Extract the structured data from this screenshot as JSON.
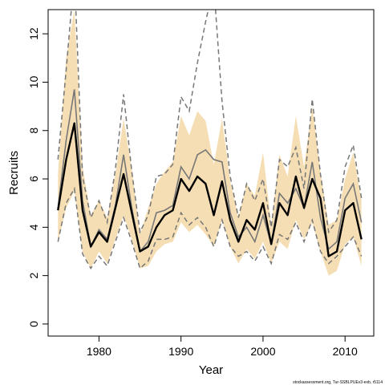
{
  "chart_data": {
    "type": "line",
    "xlabel": "Year",
    "ylabel": "Recruits",
    "xlim": [
      1973.8,
      2013.5
    ],
    "ylim": [
      -0.5,
      13
    ],
    "x_ticks": [
      1980,
      1990,
      2000,
      2010
    ],
    "y_ticks": [
      0,
      2,
      4,
      6,
      8,
      10,
      12
    ],
    "x_tick_labels": [
      "1980",
      "1990",
      "2000",
      "2010"
    ],
    "y_tick_labels": [
      "0",
      "2",
      "4",
      "6",
      "8",
      "10",
      "12"
    ],
    "x": [
      1975,
      1976,
      1977,
      1978,
      1979,
      1980,
      1981,
      1982,
      1983,
      1984,
      1985,
      1986,
      1987,
      1988,
      1989,
      1990,
      1991,
      1992,
      1993,
      1994,
      1995,
      1996,
      1997,
      1998,
      1999,
      2000,
      2001,
      2002,
      2003,
      2004,
      2005,
      2006,
      2007,
      2008,
      2009,
      2010,
      2011,
      2012
    ],
    "series": [
      {
        "role": "band",
        "color": "#f5deb3",
        "lower": [
          3.4,
          4.8,
          5.5,
          3.0,
          2.3,
          3.0,
          2.5,
          3.5,
          4.5,
          3.5,
          2.3,
          2.4,
          3.0,
          3.3,
          3.4,
          4.2,
          3.8,
          4.1,
          3.7,
          3.2,
          4.3,
          3.2,
          2.5,
          3.1,
          2.7,
          3.4,
          2.5,
          3.4,
          3.1,
          4.3,
          3.5,
          4.2,
          3.0,
          2.0,
          2.2,
          3.3,
          3.6,
          2.4
        ],
        "upper": [
          6.2,
          11.0,
          13.0,
          6.5,
          4.5,
          5.1,
          4.4,
          6.2,
          8.5,
          6.4,
          3.7,
          4.8,
          5.8,
          6.3,
          6.7,
          8.6,
          7.8,
          8.8,
          8.4,
          6.6,
          8.5,
          5.9,
          4.4,
          5.8,
          5.3,
          7.1,
          4.1,
          7.0,
          6.1,
          8.6,
          6.5,
          9.0,
          6.3,
          4.1,
          4.3,
          6.0,
          7.1,
          5.1
        ]
      },
      {
        "role": "dashed-interval",
        "color": "#777777",
        "lower": [
          3.4,
          5.0,
          5.6,
          2.9,
          2.3,
          2.8,
          2.4,
          3.4,
          4.4,
          3.4,
          2.3,
          2.6,
          3.5,
          3.5,
          3.6,
          4.6,
          4.1,
          4.4,
          4.0,
          3.2,
          4.3,
          3.2,
          2.8,
          3.0,
          2.6,
          3.2,
          2.5,
          3.7,
          3.5,
          4.2,
          3.4,
          4.3,
          3.0,
          2.5,
          2.8,
          3.2,
          3.6,
          2.8
        ],
        "upper": [
          6.8,
          10.5,
          14.5,
          6.1,
          4.4,
          5.1,
          4.2,
          6.4,
          9.5,
          6.3,
          3.8,
          4.5,
          6.1,
          6.2,
          6.6,
          9.4,
          8.8,
          10.8,
          12.5,
          14.0,
          9.2,
          6.1,
          4.4,
          5.8,
          5.1,
          6.0,
          4.0,
          6.8,
          6.5,
          7.3,
          5.6,
          9.3,
          6.2,
          3.8,
          4.3,
          6.5,
          7.4,
          5.2
        ]
      },
      {
        "role": "alternate-estimate",
        "color": "#777777",
        "values": [
          4.8,
          7.6,
          9.7,
          5.1,
          3.2,
          3.9,
          3.5,
          4.9,
          7.0,
          4.8,
          3.0,
          3.4,
          4.6,
          4.7,
          4.9,
          6.5,
          6.0,
          7.0,
          7.2,
          6.8,
          6.7,
          4.6,
          3.6,
          4.0,
          3.4,
          4.5,
          3.3,
          5.4,
          5.0,
          5.6,
          4.8,
          6.7,
          4.4,
          3.1,
          3.4,
          5.2,
          5.8,
          4.2
        ]
      },
      {
        "role": "estimate",
        "color": "#000000",
        "values": [
          4.7,
          6.8,
          8.3,
          4.7,
          3.2,
          3.8,
          3.4,
          4.8,
          6.2,
          4.6,
          3.0,
          3.2,
          4.0,
          4.5,
          4.7,
          6.0,
          5.5,
          6.1,
          5.8,
          4.5,
          5.9,
          4.3,
          3.4,
          4.3,
          3.9,
          5.0,
          3.3,
          5.0,
          4.5,
          6.1,
          4.8,
          6.0,
          5.2,
          2.8,
          3.0,
          4.7,
          5.0,
          3.5
        ]
      }
    ]
  },
  "footer": "stockassessment.org, Tur-SSBLPUEv3-exb, r5114"
}
